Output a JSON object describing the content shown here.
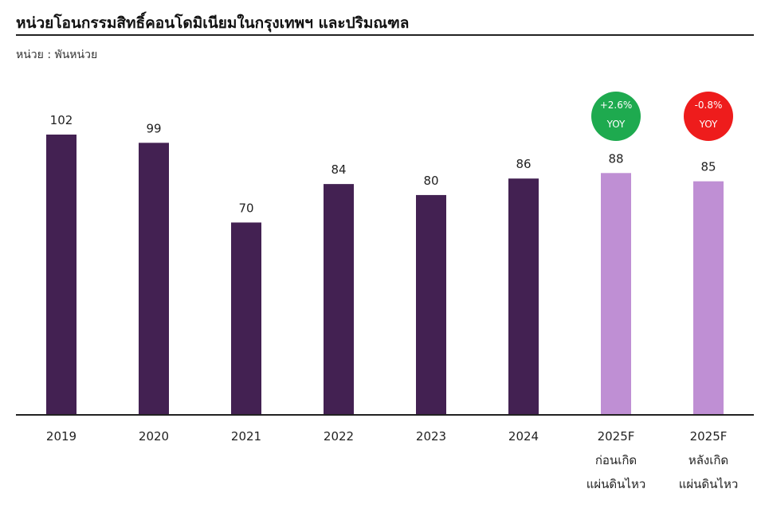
{
  "chart_data": {
    "type": "bar",
    "title": "หน่วยโอนกรรมสิทธิ์คอนโดมิเนียมในกรุงเทพฯ และปริมณฑล",
    "subtitle": "หน่วย : พันหน่วย",
    "categories": [
      [
        "2019"
      ],
      [
        "2020"
      ],
      [
        "2021"
      ],
      [
        "2022"
      ],
      [
        "2023"
      ],
      [
        "2024"
      ],
      [
        "2025F",
        "ก่อนเกิด",
        "แผ่นดินไหว"
      ],
      [
        "2025F",
        "หลังเกิด",
        "แผ่นดินไหว"
      ]
    ],
    "values": [
      102,
      99,
      70,
      84,
      80,
      86,
      88,
      85
    ],
    "forecast": [
      false,
      false,
      false,
      false,
      false,
      false,
      true,
      true
    ],
    "colors": {
      "actual": "#432152",
      "forecast": "#bf8fd4",
      "axis": "#222222"
    },
    "annotations": [
      {
        "index": 6,
        "lines": [
          "+2.6%",
          "YOY"
        ],
        "color": "#1eaa4f"
      },
      {
        "index": 7,
        "lines": [
          "-0.8%",
          "YOY"
        ],
        "color": "#ee1c1c"
      }
    ],
    "ylim": [
      0,
      102
    ],
    "grid": false,
    "legend": "none"
  }
}
